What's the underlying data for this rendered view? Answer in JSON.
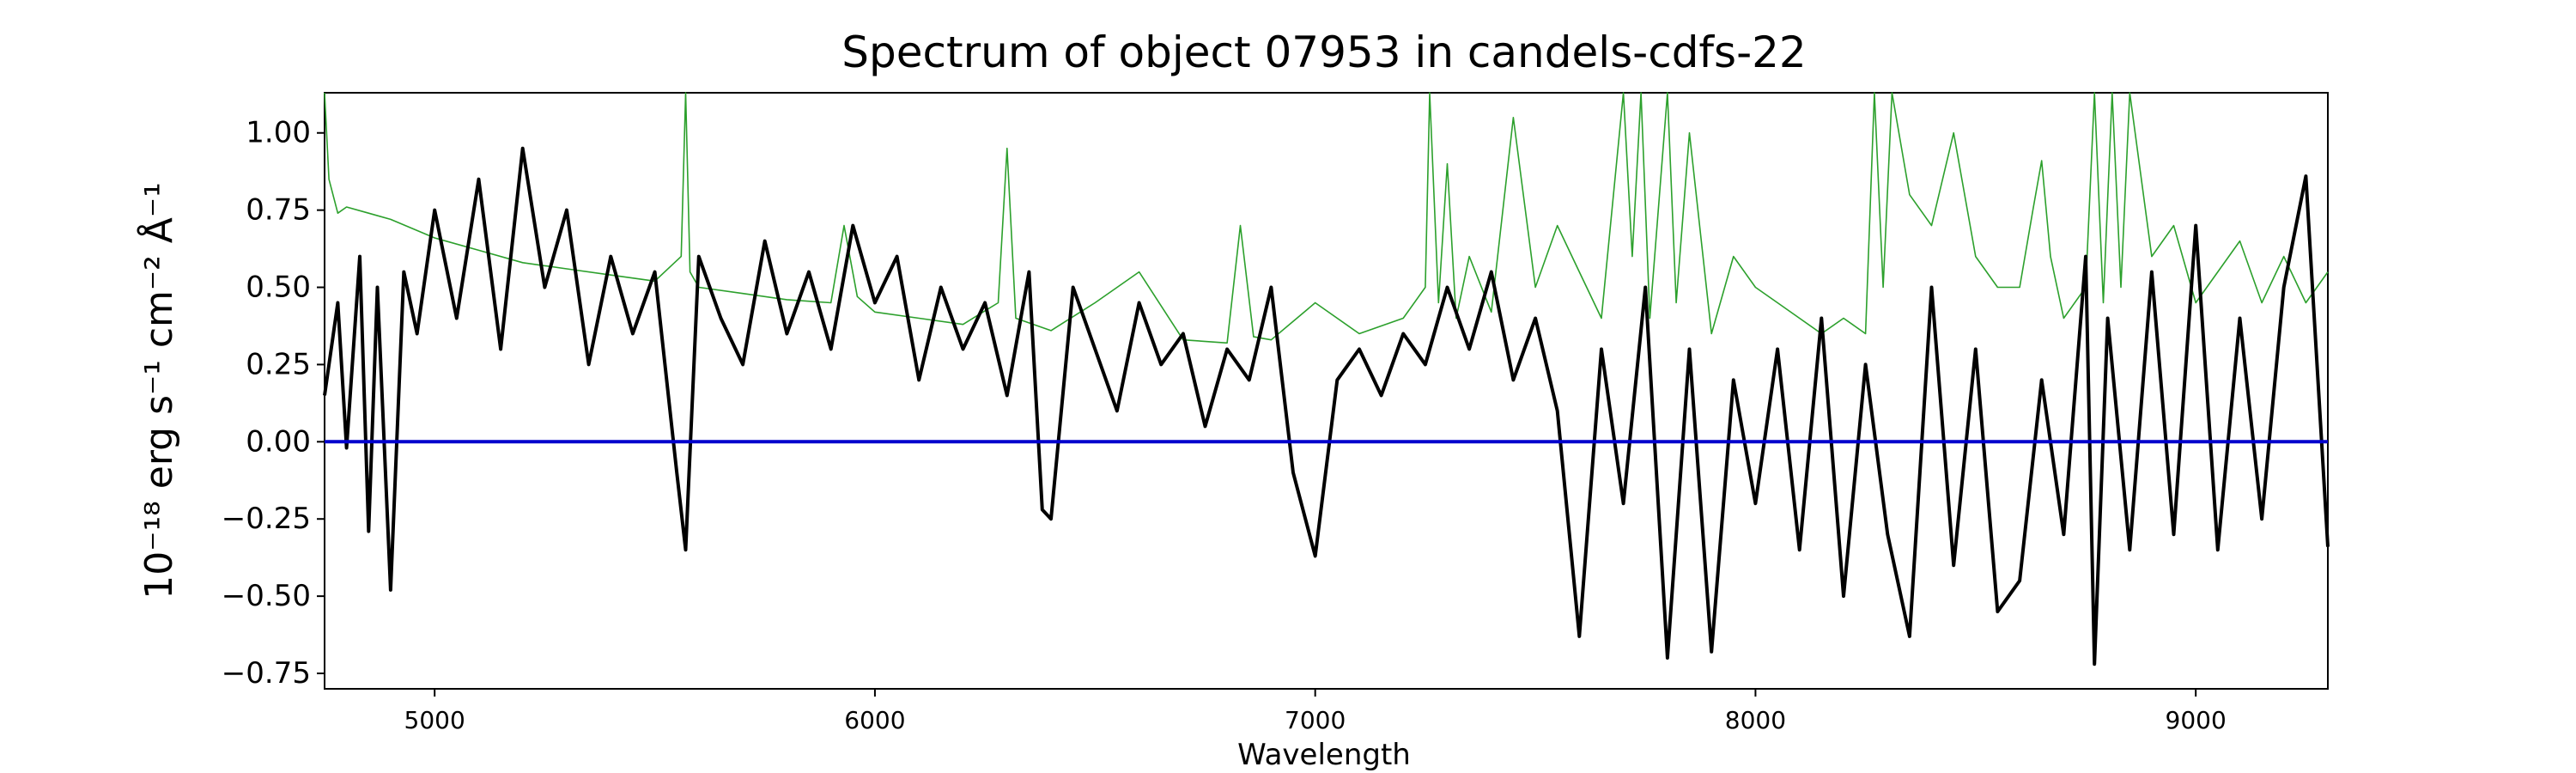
{
  "chart_data": {
    "type": "line",
    "title": "Spectrum of object 07953 in candels-cdfs-22",
    "xlabel": "Wavelength",
    "ylabel": "10⁻¹⁸ erg s⁻¹ cm⁻² Å⁻¹",
    "xlim": [
      4750,
      9300
    ],
    "ylim": [
      -0.8,
      1.13
    ],
    "xticks": [
      5000,
      6000,
      7000,
      8000,
      9000
    ],
    "yticks": [
      -0.75,
      -0.5,
      -0.25,
      0.0,
      0.25,
      0.5,
      0.75,
      1.0
    ],
    "yticklabels": [
      "−0.75",
      "−0.50",
      "−0.25",
      "0.00",
      "0.25",
      "0.50",
      "0.75",
      "1.00"
    ],
    "grid": false,
    "colors": {
      "flux": "#000000",
      "error": "#2ca02c",
      "zero": "#0000cd"
    },
    "series": [
      {
        "role": "flux",
        "x": [
          4750,
          4780,
          4800,
          4830,
          4850,
          4870,
          4900,
          4930,
          4960,
          5000,
          5050,
          5100,
          5150,
          5200,
          5250,
          5300,
          5350,
          5400,
          5450,
          5500,
          5550,
          5570,
          5600,
          5650,
          5700,
          5750,
          5800,
          5850,
          5900,
          5950,
          6000,
          6050,
          6100,
          6150,
          6200,
          6250,
          6300,
          6350,
          6380,
          6400,
          6450,
          6500,
          6550,
          6600,
          6650,
          6700,
          6750,
          6800,
          6850,
          6900,
          6950,
          7000,
          7050,
          7100,
          7150,
          7200,
          7250,
          7300,
          7350,
          7400,
          7450,
          7500,
          7550,
          7600,
          7650,
          7700,
          7750,
          7800,
          7850,
          7900,
          7950,
          8000,
          8050,
          8100,
          8150,
          8200,
          8250,
          8300,
          8350,
          8400,
          8450,
          8500,
          8550,
          8600,
          8650,
          8700,
          8750,
          8770,
          8800,
          8850,
          8900,
          8950,
          9000,
          9050,
          9100,
          9150,
          9200,
          9250,
          9300
        ],
        "y": [
          0.15,
          0.45,
          -0.02,
          0.6,
          -0.29,
          0.5,
          -0.48,
          0.55,
          0.35,
          0.75,
          0.4,
          0.85,
          0.3,
          0.95,
          0.5,
          0.75,
          0.25,
          0.6,
          0.35,
          0.55,
          -0.1,
          -0.35,
          0.6,
          0.4,
          0.25,
          0.65,
          0.35,
          0.55,
          0.3,
          0.7,
          0.45,
          0.6,
          0.2,
          0.5,
          0.3,
          0.45,
          0.15,
          0.55,
          -0.22,
          -0.25,
          0.5,
          0.3,
          0.1,
          0.45,
          0.25,
          0.35,
          0.05,
          0.3,
          0.2,
          0.5,
          -0.1,
          -0.37,
          0.2,
          0.3,
          0.15,
          0.35,
          0.25,
          0.5,
          0.3,
          0.55,
          0.2,
          0.4,
          0.1,
          -0.63,
          0.3,
          -0.2,
          0.5,
          -0.7,
          0.3,
          -0.68,
          0.2,
          -0.2,
          0.3,
          -0.35,
          0.4,
          -0.5,
          0.25,
          -0.3,
          -0.63,
          0.5,
          -0.4,
          0.3,
          -0.55,
          -0.45,
          0.2,
          -0.3,
          0.6,
          -0.72,
          0.4,
          -0.35,
          0.55,
          -0.3,
          0.7,
          -0.35,
          0.4,
          -0.25,
          0.5,
          0.86,
          -0.34
        ]
      },
      {
        "role": "error",
        "x": [
          4750,
          4760,
          4780,
          4800,
          4850,
          4900,
          5000,
          5100,
          5200,
          5300,
          5400,
          5500,
          5560,
          5570,
          5580,
          5600,
          5700,
          5800,
          5900,
          5930,
          5960,
          6000,
          6100,
          6200,
          6280,
          6300,
          6320,
          6400,
          6500,
          6600,
          6700,
          6800,
          6830,
          6860,
          6900,
          7000,
          7100,
          7200,
          7250,
          7260,
          7280,
          7300,
          7320,
          7350,
          7400,
          7450,
          7500,
          7550,
          7600,
          7650,
          7700,
          7720,
          7740,
          7760,
          7800,
          7820,
          7850,
          7900,
          7950,
          8000,
          8050,
          8100,
          8150,
          8200,
          8250,
          8270,
          8290,
          8310,
          8350,
          8400,
          8450,
          8500,
          8550,
          8600,
          8630,
          8650,
          8670,
          8700,
          8750,
          8770,
          8790,
          8810,
          8830,
          8850,
          8900,
          8950,
          9000,
          9050,
          9100,
          9150,
          9200,
          9250,
          9300
        ],
        "y": [
          1.13,
          0.85,
          0.74,
          0.76,
          0.74,
          0.72,
          0.66,
          0.62,
          0.58,
          0.56,
          0.54,
          0.52,
          0.6,
          1.13,
          0.55,
          0.5,
          0.48,
          0.46,
          0.45,
          0.7,
          0.47,
          0.42,
          0.4,
          0.38,
          0.45,
          0.95,
          0.4,
          0.36,
          0.45,
          0.55,
          0.33,
          0.32,
          0.7,
          0.34,
          0.33,
          0.45,
          0.35,
          0.4,
          0.5,
          1.13,
          0.45,
          0.9,
          0.4,
          0.6,
          0.42,
          1.05,
          0.5,
          0.7,
          0.55,
          0.4,
          1.13,
          0.6,
          1.13,
          0.4,
          1.13,
          0.45,
          1.0,
          0.35,
          0.6,
          0.5,
          0.45,
          0.4,
          0.35,
          0.4,
          0.35,
          1.13,
          0.5,
          1.13,
          0.8,
          0.7,
          1.0,
          0.6,
          0.5,
          0.5,
          0.75,
          0.91,
          0.6,
          0.4,
          0.5,
          1.13,
          0.45,
          1.13,
          0.5,
          1.13,
          0.6,
          0.7,
          0.45,
          0.55,
          0.65,
          0.45,
          0.6,
          0.45,
          0.55
        ]
      },
      {
        "role": "zero",
        "x": [
          4750,
          9300
        ],
        "y": [
          0.0,
          0.0
        ]
      }
    ]
  }
}
